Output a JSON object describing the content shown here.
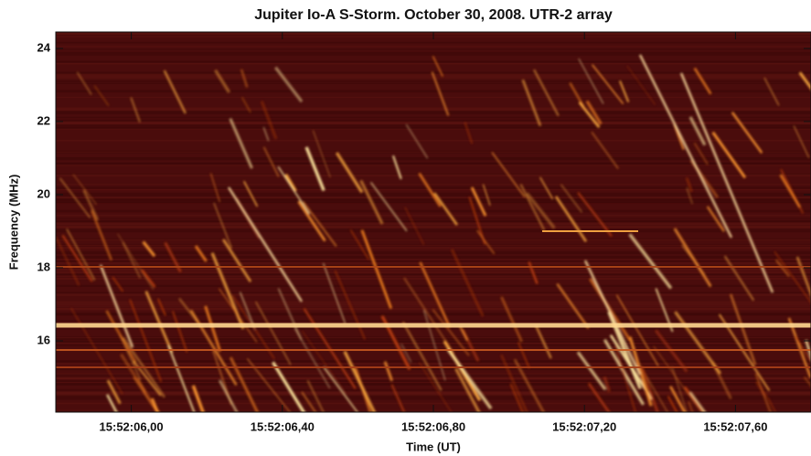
{
  "chart_data": {
    "type": "spectrogram",
    "title": "Jupiter Io-A S-Storm. October 30, 2008. UTR-2 array",
    "x_label": "Time (UT)",
    "y_label": "Frequency (MHz)",
    "xlim": [
      5.8,
      7.8
    ],
    "xticks": [
      {
        "value": 6.0,
        "label": "15:52:06,00"
      },
      {
        "value": 6.4,
        "label": "15:52:06,40"
      },
      {
        "value": 6.8,
        "label": "15:52:06,80"
      },
      {
        "value": 7.2,
        "label": "15:52:07,20"
      },
      {
        "value": 7.6,
        "label": "15:52:07,60"
      }
    ],
    "ylim": [
      14.05,
      24.45
    ],
    "yticks": [
      16,
      18,
      20,
      22,
      24
    ]
  }
}
